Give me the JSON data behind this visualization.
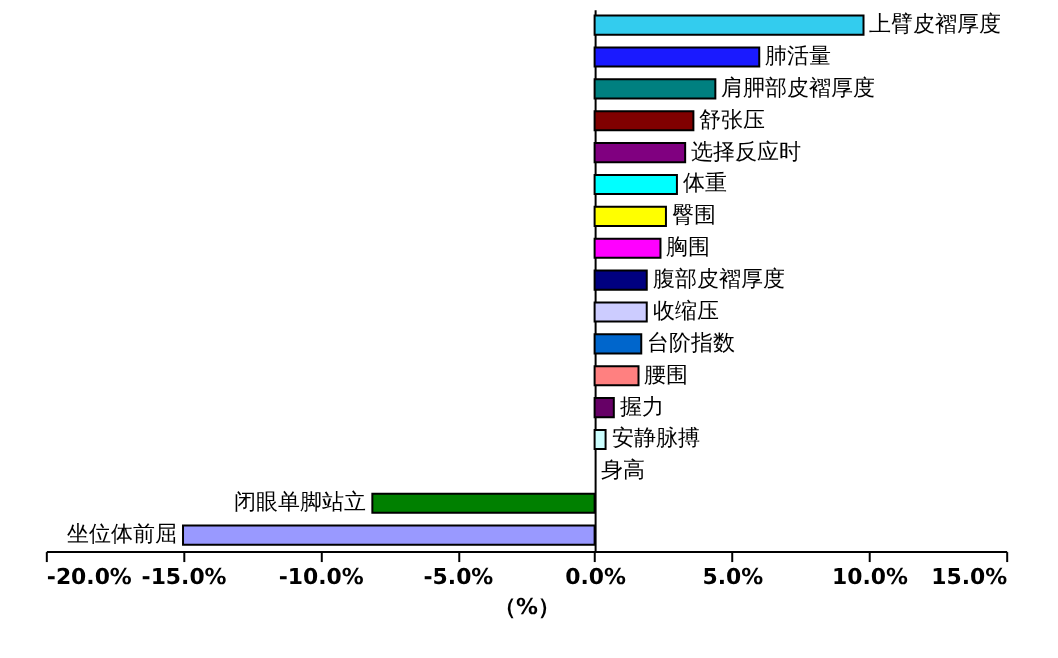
{
  "chart_data": {
    "type": "bar",
    "orientation": "horizontal",
    "xlabel": "（%）",
    "categories": [
      "上臂皮褶厚度",
      "肺活量",
      "肩胛部皮褶厚度",
      "舒张压",
      "选择反应时",
      "体重",
      "臀围",
      "胸围",
      "腹部皮褶厚度",
      "收缩压",
      "台阶指数",
      "腰围",
      "握力",
      "安静脉搏",
      "身高",
      "闭眼单脚站立",
      "坐位体前屈"
    ],
    "values": [
      9.8,
      6.0,
      4.4,
      3.6,
      3.3,
      3.0,
      2.6,
      2.4,
      1.9,
      1.9,
      1.7,
      1.6,
      0.7,
      0.4,
      0,
      -8.1,
      -15.0
    ],
    "colors": [
      "#33ccee",
      "#1a1aff",
      "#008080",
      "#800000",
      "#800080",
      "#00ffff",
      "#ffff00",
      "#ff00ff",
      "#000080",
      "#ccccff",
      "#0066cc",
      "#ff8080",
      "#660066",
      "#ccffff",
      "#ffffff",
      "#008000",
      "#9999ff"
    ],
    "xlim": [
      -20,
      15
    ],
    "xticks": [
      {
        "value": -20,
        "label": "-20.0%"
      },
      {
        "value": -15,
        "label": "-15.0%"
      },
      {
        "value": -10,
        "label": "-10.0%"
      },
      {
        "value": -5,
        "label": "-5.0%"
      },
      {
        "value": 0,
        "label": "0.0%"
      },
      {
        "value": 5,
        "label": "5.0%"
      },
      {
        "value": 10,
        "label": "10.0%"
      },
      {
        "value": 15,
        "label": "15.0%"
      }
    ],
    "tick_labels": "x",
    "grid": false,
    "legend": false
  }
}
